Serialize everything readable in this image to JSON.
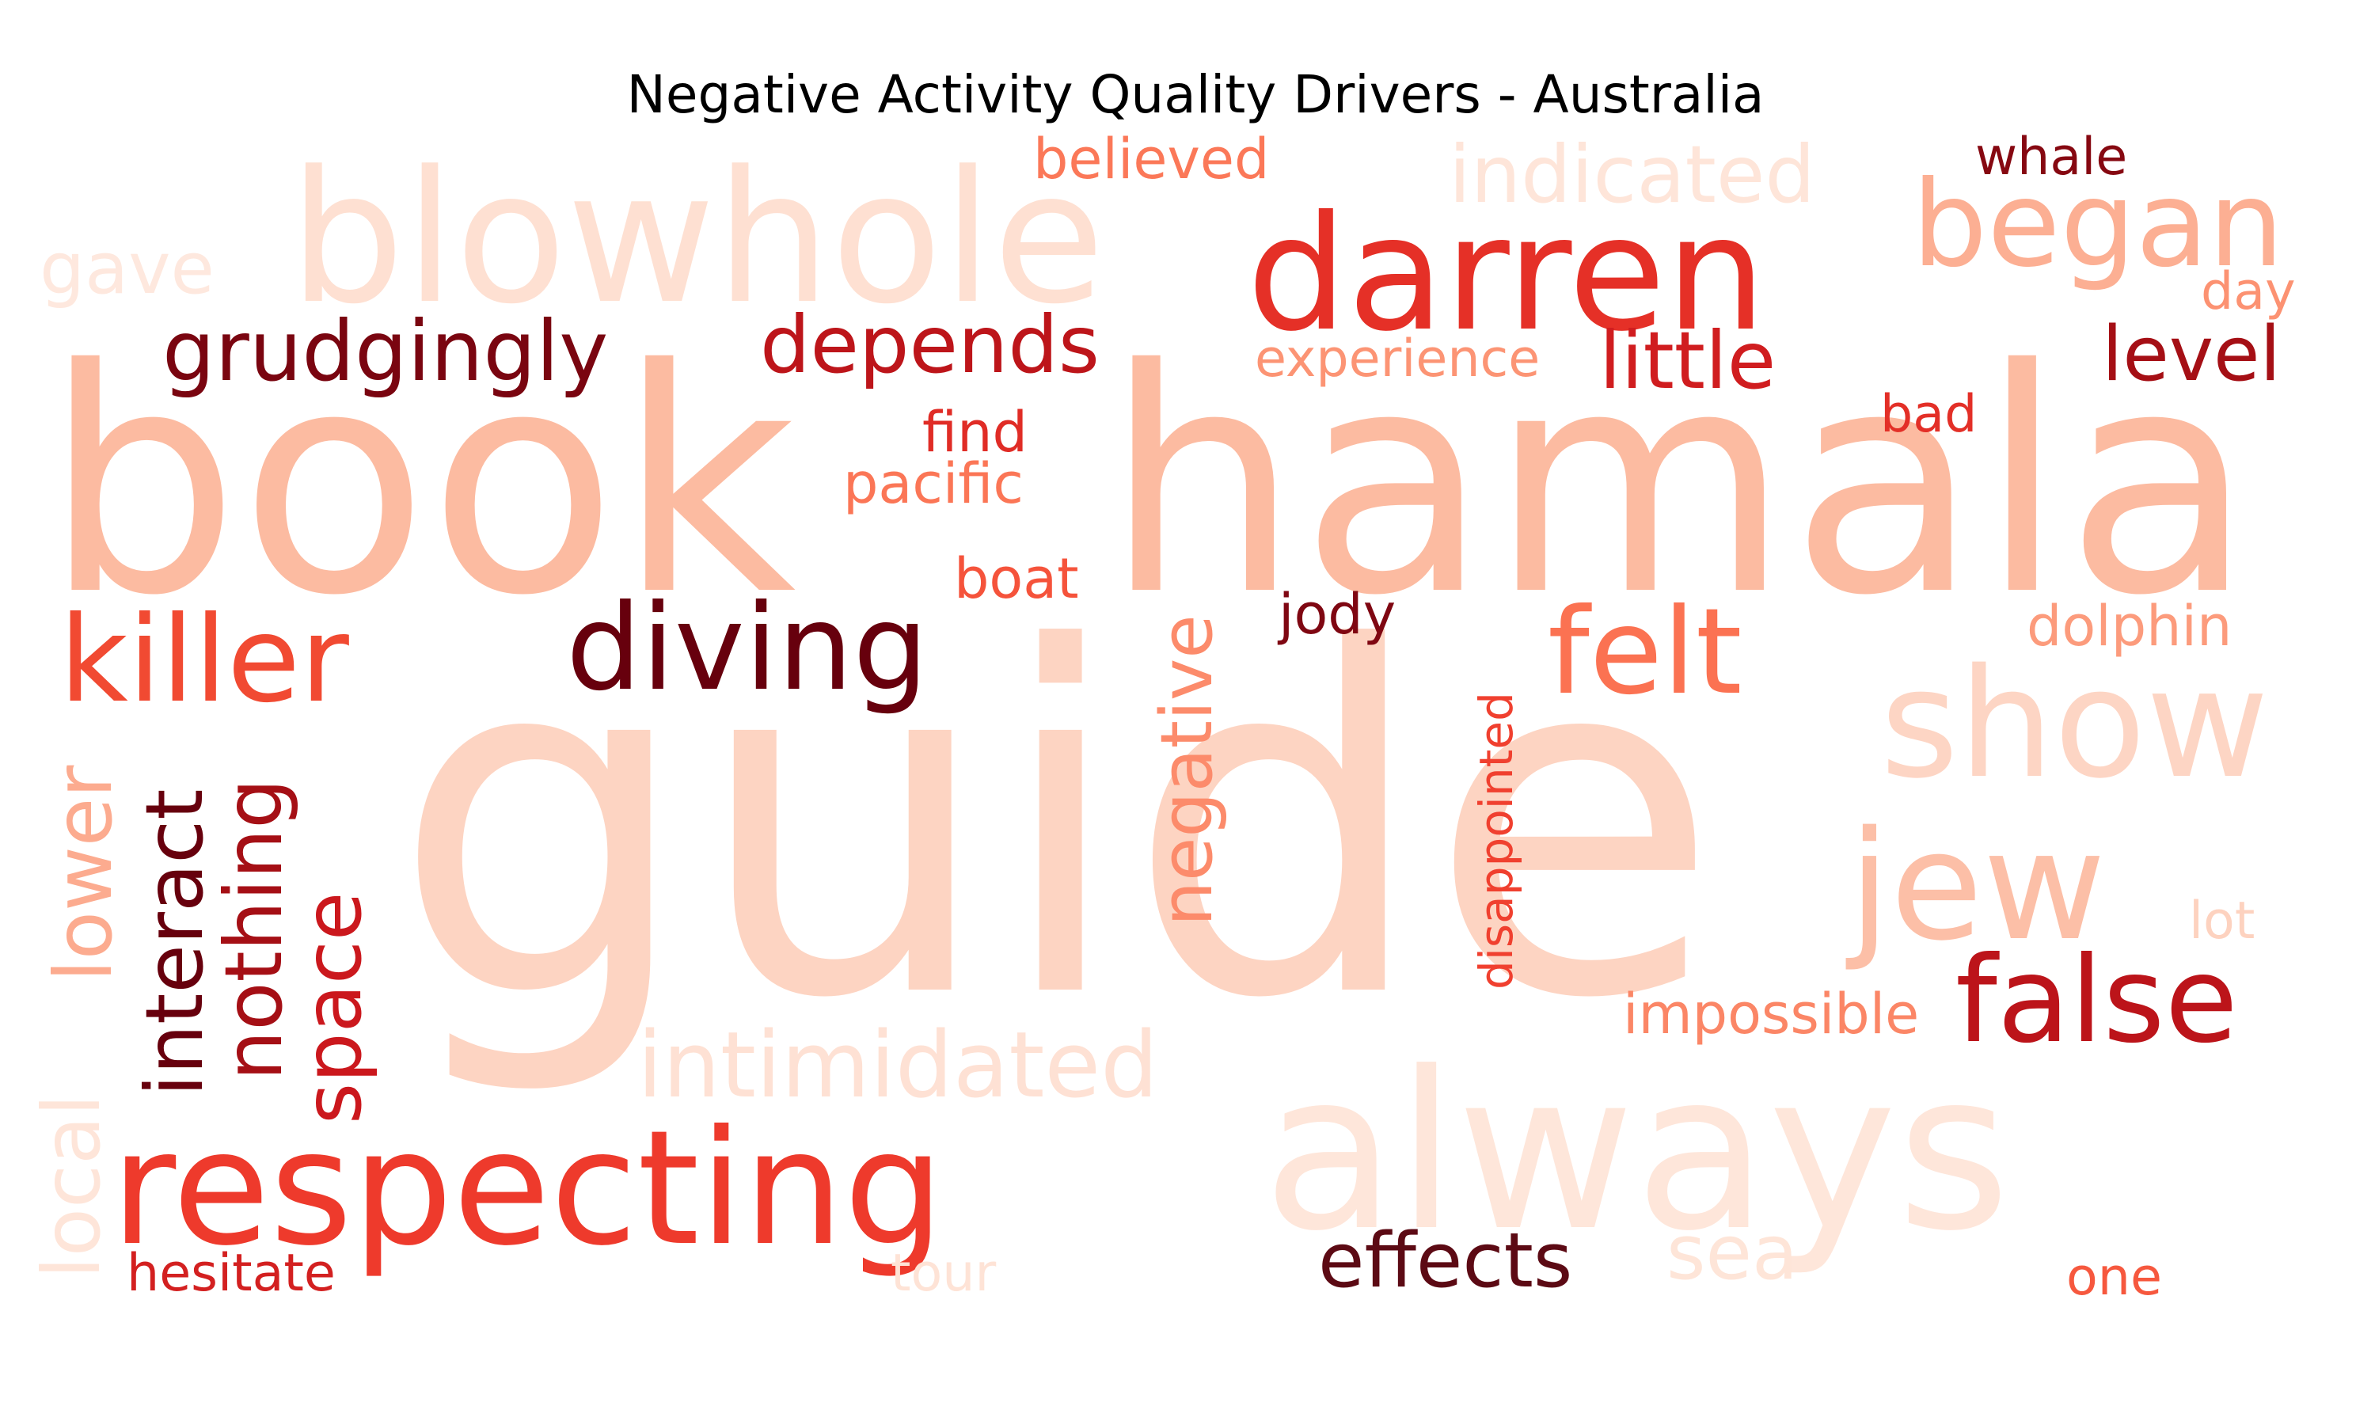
{
  "title": "Negative Activity Quality Drivers - Australia",
  "colors": {
    "background": "#ffffff",
    "title": "#000000"
  },
  "words": [
    {
      "text": "guide",
      "color": "#fdd4c2",
      "vertical": false
    },
    {
      "text": "book",
      "color": "#fcbba1",
      "vertical": false
    },
    {
      "text": "hamala",
      "color": "#fcbba1",
      "vertical": false
    },
    {
      "text": "always",
      "color": "#fee6da",
      "vertical": false
    },
    {
      "text": "blowhole",
      "color": "#fee0d2",
      "vertical": false
    },
    {
      "text": "darren",
      "color": "#e53027",
      "vertical": false
    },
    {
      "text": "respecting",
      "color": "#ee3a2c",
      "vertical": false
    },
    {
      "text": "show",
      "color": "#fdd5c4",
      "vertical": false
    },
    {
      "text": "jew",
      "color": "#fcbfa7",
      "vertical": false
    },
    {
      "text": "began",
      "color": "#fcaf93",
      "vertical": false
    },
    {
      "text": "diving",
      "color": "#67000d",
      "vertical": false
    },
    {
      "text": "killer",
      "color": "#f14a32",
      "vertical": false
    },
    {
      "text": "felt",
      "color": "#fb7252",
      "vertical": false
    },
    {
      "text": "false",
      "color": "#bc141a",
      "vertical": false
    },
    {
      "text": "intimidated",
      "color": "#fee1d4",
      "vertical": false
    },
    {
      "text": "grudgingly",
      "color": "#7a0510",
      "vertical": false
    },
    {
      "text": "depends",
      "color": "#bd151a",
      "vertical": false
    },
    {
      "text": "indicated",
      "color": "#fee5d9",
      "vertical": false
    },
    {
      "text": "little",
      "color": "#d01d1f",
      "vertical": false
    },
    {
      "text": "level",
      "color": "#a50f15",
      "vertical": false
    },
    {
      "text": "effects",
      "color": "#5c0a14",
      "vertical": false
    },
    {
      "text": "sea",
      "color": "#fee5d8",
      "vertical": false
    },
    {
      "text": "negative",
      "color": "#fc8b6b",
      "vertical": true
    },
    {
      "text": "disappointed",
      "color": "#f0402f",
      "vertical": true
    },
    {
      "text": "interact",
      "color": "#67000d",
      "vertical": true
    },
    {
      "text": "nothing",
      "color": "#a50f15",
      "vertical": true
    },
    {
      "text": "space",
      "color": "#cb181d",
      "vertical": true
    },
    {
      "text": "lower",
      "color": "#fcab8f",
      "vertical": true
    },
    {
      "text": "local",
      "color": "#fee5d9",
      "vertical": true
    },
    {
      "text": "gave",
      "color": "#fee8de",
      "vertical": false
    },
    {
      "text": "believed",
      "color": "#fb7858",
      "vertical": false
    },
    {
      "text": "whale",
      "color": "#860811",
      "vertical": false
    },
    {
      "text": "day",
      "color": "#fc9272",
      "vertical": false
    },
    {
      "text": "experience",
      "color": "#fc9474",
      "vertical": false
    },
    {
      "text": "bad",
      "color": "#e32f27",
      "vertical": false
    },
    {
      "text": "find",
      "color": "#e02c26",
      "vertical": false
    },
    {
      "text": "pacific",
      "color": "#fb7656",
      "vertical": false
    },
    {
      "text": "boat",
      "color": "#f5533b",
      "vertical": false
    },
    {
      "text": "jody",
      "color": "#7f0712",
      "vertical": false
    },
    {
      "text": "dolphin",
      "color": "#fc9b7c",
      "vertical": false
    },
    {
      "text": "lot",
      "color": "#fdd2bf",
      "vertical": false
    },
    {
      "text": "impossible",
      "color": "#fb8666",
      "vertical": false
    },
    {
      "text": "hesitate",
      "color": "#d32020",
      "vertical": false
    },
    {
      "text": "tour",
      "color": "#fee3d6",
      "vertical": false
    },
    {
      "text": "one",
      "color": "#f6583e",
      "vertical": false
    }
  ]
}
